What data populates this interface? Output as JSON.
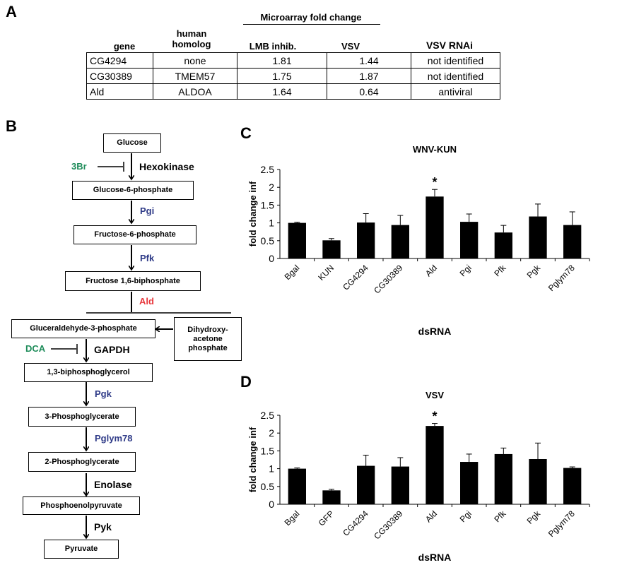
{
  "panels": {
    "a": "A",
    "b": "B",
    "c": "C",
    "d": "D"
  },
  "table": {
    "super_header": "Microarray fold change",
    "headers": {
      "gene": "gene",
      "homolog_line1": "human",
      "homolog_line2": "homolog",
      "lmb": "LMB inhib.",
      "vsv": "VSV",
      "rnai": "VSV RNAi"
    },
    "rows": [
      [
        "CG4294",
        "none",
        "1.81",
        "1.44",
        "not identified"
      ],
      [
        "CG30389",
        "TMEM57",
        "1.75",
        "1.87",
        "not identified"
      ],
      [
        "Ald",
        "ALDOA",
        "1.64",
        "0.64",
        "antiviral"
      ]
    ]
  },
  "pathway": {
    "nodes": {
      "glucose": "Glucose",
      "g6p": "Glucose-6-phosphate",
      "f6p": "Fructose-6-phosphate",
      "f16bp": "Fructose 1,6-biphosphate",
      "g3p": "Gluceraldehyde-3-phosphate",
      "dhap_1": "Dihydroxy-",
      "dhap_2": "acetone",
      "dhap_3": "phosphate",
      "bpg": "1,3-biphosphoglycerol",
      "pg3": "3-Phosphoglycerate",
      "pg2": "2-Phosphoglycerate",
      "pep": "Phosphoenolpyruvate",
      "pyruvate": "Pyruvate"
    },
    "enzymes": {
      "hexokinase": "Hexokinase",
      "pgi": "Pgi",
      "pfk": "Pfk",
      "ald": "Ald",
      "gapdh": "GAPDH",
      "pgk": "Pgk",
      "pglym78": "Pglym78",
      "enolase": "Enolase",
      "pyk": "Pyk"
    },
    "inhibitors": {
      "br3": "3Br",
      "dca": "DCA"
    },
    "colors": {
      "fly_gene": "#2e3a87",
      "ald": "#e8383d",
      "inhibitor": "#1e8c5a"
    }
  },
  "chart_data": [
    {
      "type": "bar",
      "title": "WNV-KUN",
      "xlabel": "dsRNA",
      "ylabel": "fold change inf",
      "ylim": [
        0,
        2.5
      ],
      "yticks": [
        "0",
        "0.5",
        "1",
        "1.5",
        "2",
        "2.5"
      ],
      "categories": [
        "Bgal",
        "KUN",
        "CG4294",
        "CG30389",
        "Ald",
        "Pgi",
        "Pfk",
        "Pgk",
        "Pglym78"
      ],
      "values": [
        1.0,
        0.51,
        1.01,
        0.94,
        1.74,
        1.03,
        0.73,
        1.18,
        0.94
      ],
      "errors": [
        0.02,
        0.05,
        0.25,
        0.27,
        0.2,
        0.22,
        0.2,
        0.35,
        0.37
      ],
      "annotations": [
        {
          "category": "Ald",
          "text": "*"
        }
      ],
      "grid": false
    },
    {
      "type": "bar",
      "title": "VSV",
      "xlabel": "dsRNA",
      "ylabel": "fold change inf",
      "ylim": [
        0,
        2.5
      ],
      "yticks": [
        "0",
        "0.5",
        "1",
        "1.5",
        "2",
        "2.5"
      ],
      "categories": [
        "Bgal",
        "GFP",
        "CG4294",
        "CG30389",
        "Ald",
        "Pgi",
        "Pfk",
        "Pgk",
        "Pglym78"
      ],
      "values": [
        1.0,
        0.39,
        1.08,
        1.06,
        2.2,
        1.19,
        1.41,
        1.27,
        1.02
      ],
      "errors": [
        0.02,
        0.03,
        0.3,
        0.25,
        0.07,
        0.22,
        0.17,
        0.45,
        0.03
      ],
      "annotations": [
        {
          "category": "Ald",
          "text": "*"
        }
      ],
      "grid": false
    }
  ]
}
